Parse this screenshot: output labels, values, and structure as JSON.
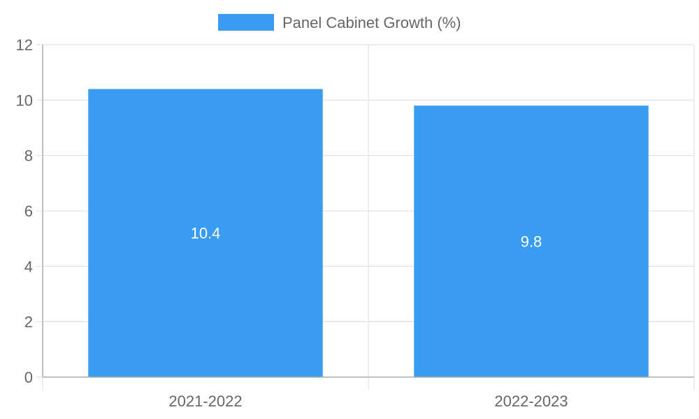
{
  "chart_data": {
    "type": "bar",
    "categories": [
      "2021-2022",
      "2022-2023"
    ],
    "series": [
      {
        "name": "Panel Cabinet Growth (%)",
        "values": [
          10.4,
          9.8
        ],
        "color": "#399CF2"
      }
    ],
    "data_labels": [
      "10.4",
      "9.8"
    ],
    "ylim": [
      0,
      12
    ],
    "yticks": [
      "0",
      "2",
      "4",
      "6",
      "8",
      "10",
      "12"
    ],
    "grid": true,
    "legend": "top-center",
    "colors": {
      "grid": "#DDDDDD",
      "axis": "#AAAAAA",
      "text": "#666666",
      "data_label": "#FFFFFF"
    }
  }
}
